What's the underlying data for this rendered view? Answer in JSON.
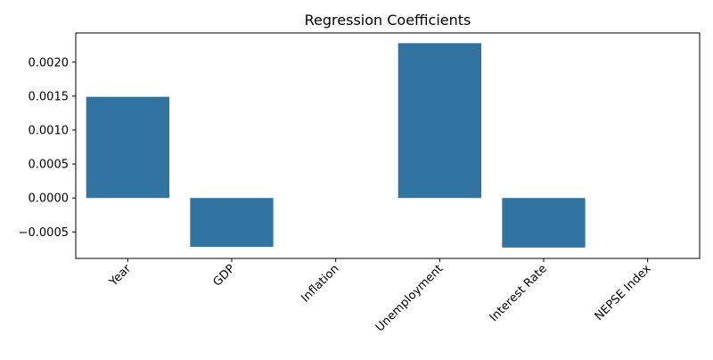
{
  "chart_data": {
    "type": "bar",
    "title": "Regression Coefficients",
    "xlabel": "",
    "ylabel": "",
    "categories": [
      "Year",
      "GDP",
      "Inflation",
      "Unemployment",
      "Interest Rate",
      "NEPSE Index"
    ],
    "values": [
      0.00149,
      -0.00072,
      0.0,
      0.00228,
      -0.00073,
      0.0
    ],
    "ylim": [
      -0.00089,
      0.00243
    ],
    "yticks": [
      -0.0005,
      0.0,
      0.0005,
      0.001,
      0.0015,
      0.002
    ],
    "ytick_labels": [
      "−0.0005",
      "0.0000",
      "0.0005",
      "0.0010",
      "0.0015",
      "0.0020"
    ],
    "bar_color": "#3274a1",
    "grid": false,
    "legend": "none"
  }
}
